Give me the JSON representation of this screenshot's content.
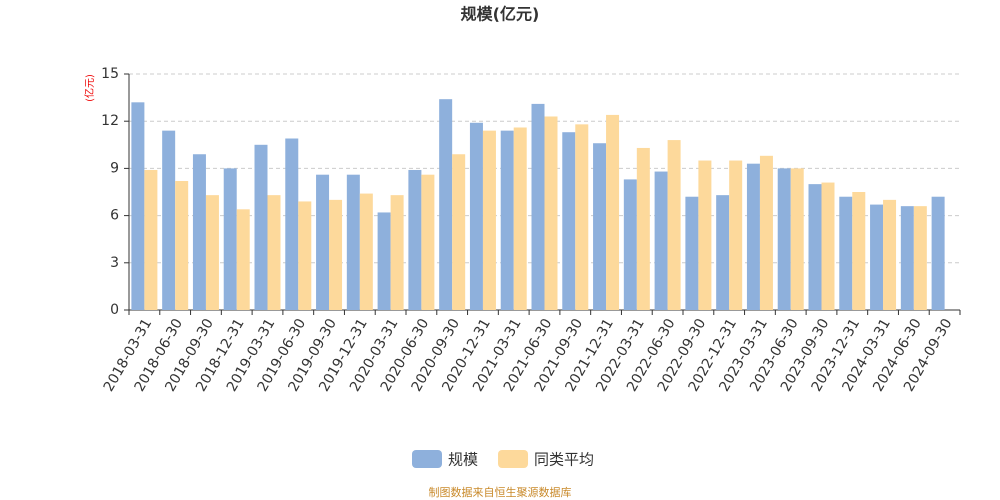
{
  "chart_data": {
    "type": "bar",
    "title": "规模(亿元)",
    "y_axis_label": "(亿元)",
    "source_note": "制图数据来自恒生聚源数据库",
    "categories": [
      "2018-03-31",
      "2018-06-30",
      "2018-09-30",
      "2018-12-31",
      "2019-03-31",
      "2019-06-30",
      "2019-09-30",
      "2019-12-31",
      "2020-03-31",
      "2020-06-30",
      "2020-09-30",
      "2020-12-31",
      "2021-03-31",
      "2021-06-30",
      "2021-09-30",
      "2021-12-31",
      "2022-03-31",
      "2022-06-30",
      "2022-09-30",
      "2022-12-31",
      "2023-03-31",
      "2023-06-30",
      "2023-09-30",
      "2023-12-31",
      "2024-03-31",
      "2024-06-30",
      "2024-09-30"
    ],
    "series": [
      {
        "name": "规模",
        "color": "#8eb0dc",
        "values": [
          13.2,
          11.4,
          9.9,
          9.0,
          10.5,
          10.9,
          8.6,
          8.6,
          6.2,
          8.9,
          13.4,
          11.9,
          11.4,
          13.1,
          11.3,
          10.6,
          8.3,
          8.8,
          7.2,
          7.3,
          9.3,
          9.0,
          8.0,
          7.2,
          6.7,
          6.6,
          7.2
        ]
      },
      {
        "name": "同类平均",
        "color": "#fdd99b",
        "values": [
          8.9,
          8.2,
          7.3,
          6.4,
          7.3,
          6.9,
          7.0,
          7.4,
          7.3,
          8.6,
          9.9,
          11.4,
          11.6,
          12.3,
          11.8,
          12.4,
          10.3,
          10.8,
          9.5,
          9.5,
          9.8,
          9.0,
          8.1,
          7.5,
          7.0,
          6.6,
          null
        ]
      }
    ],
    "ylim": [
      0,
      15
    ],
    "yticks": [
      0,
      3,
      6,
      9,
      12,
      15
    ],
    "grid": true
  }
}
